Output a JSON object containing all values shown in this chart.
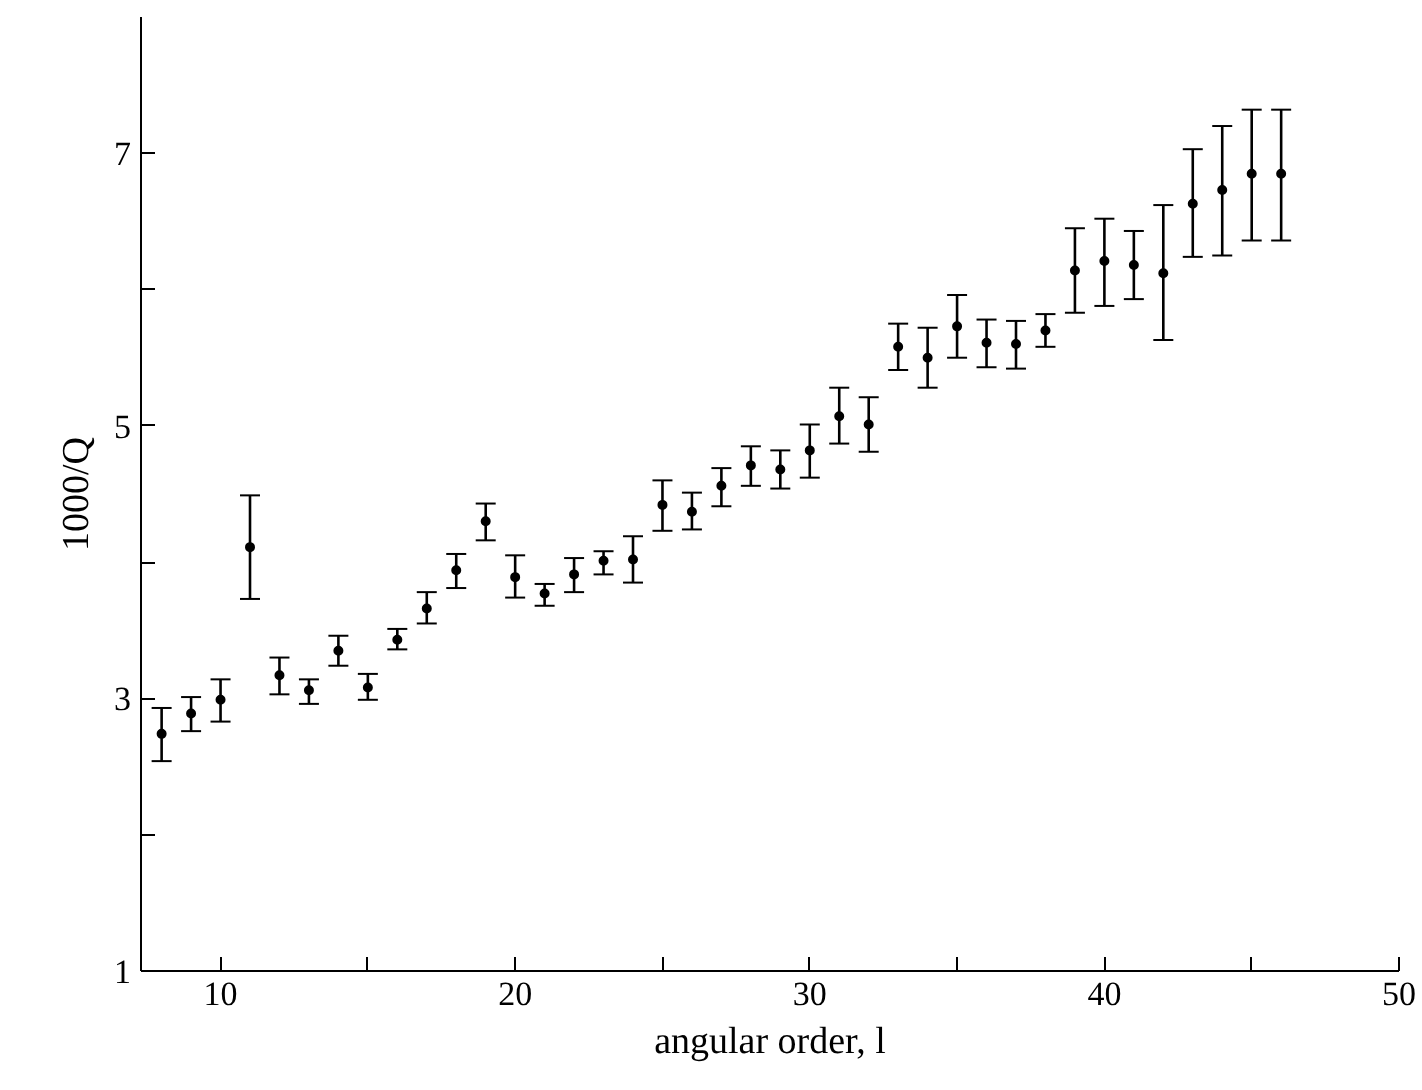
{
  "chart_data": {
    "type": "scatter",
    "xlabel": "angular order, l",
    "ylabel": "1000/Q",
    "x": [
      8,
      9,
      10,
      11,
      12,
      13,
      14,
      15,
      16,
      17,
      18,
      19,
      20,
      21,
      22,
      23,
      24,
      25,
      26,
      27,
      28,
      29,
      30,
      31,
      32,
      33,
      34,
      35,
      36,
      37,
      38,
      39,
      40,
      41,
      42,
      43,
      44,
      45,
      46
    ],
    "values": [
      2.74,
      2.89,
      2.99,
      4.11,
      3.17,
      3.06,
      3.35,
      3.08,
      3.43,
      3.66,
      3.94,
      4.3,
      3.89,
      3.77,
      3.91,
      4.01,
      4.02,
      4.42,
      4.37,
      4.56,
      4.71,
      4.68,
      4.82,
      5.07,
      5.01,
      5.58,
      5.5,
      5.73,
      5.61,
      5.6,
      5.7,
      6.14,
      6.21,
      6.18,
      6.12,
      6.63,
      6.73,
      6.85,
      6.85
    ],
    "errors": [
      [
        2.54,
        2.93
      ],
      [
        2.76,
        3.01
      ],
      [
        2.83,
        3.14
      ],
      [
        3.73,
        4.49
      ],
      [
        3.03,
        3.3
      ],
      [
        2.96,
        3.14
      ],
      [
        3.24,
        3.46
      ],
      [
        2.99,
        3.18
      ],
      [
        3.36,
        3.51
      ],
      [
        3.55,
        3.78
      ],
      [
        3.81,
        4.06
      ],
      [
        4.16,
        4.43
      ],
      [
        3.74,
        4.05
      ],
      [
        3.68,
        3.84
      ],
      [
        3.78,
        4.03
      ],
      [
        3.91,
        4.08
      ],
      [
        3.85,
        4.19
      ],
      [
        4.23,
        4.6
      ],
      [
        4.24,
        4.51
      ],
      [
        4.41,
        4.69
      ],
      [
        4.56,
        4.85
      ],
      [
        4.54,
        4.82
      ],
      [
        4.62,
        5.01
      ],
      [
        4.87,
        5.28
      ],
      [
        4.81,
        5.21
      ],
      [
        5.41,
        5.75
      ],
      [
        5.28,
        5.72
      ],
      [
        5.5,
        5.96
      ],
      [
        5.43,
        5.78
      ],
      [
        5.42,
        5.77
      ],
      [
        5.58,
        5.82
      ],
      [
        5.83,
        6.45
      ],
      [
        5.88,
        6.52
      ],
      [
        5.93,
        6.43
      ],
      [
        5.63,
        6.62
      ],
      [
        6.24,
        7.03
      ],
      [
        6.25,
        7.2
      ],
      [
        6.36,
        7.32
      ],
      [
        6.36,
        7.32
      ]
    ],
    "color": "#000000",
    "marker": "circle",
    "xlim": [
      7.3,
      50
    ],
    "xticks": [
      10,
      {
        "value": 15,
        "label": null
      },
      20,
      {
        "value": 25,
        "label": null
      },
      30,
      {
        "value": 35,
        "label": null
      },
      40,
      {
        "value": 45,
        "label": null
      },
      50
    ],
    "ylim": [
      1,
      8
    ],
    "yticks": [
      1,
      {
        "value": 2,
        "label": null
      },
      3,
      {
        "value": 4,
        "label": null
      },
      5,
      {
        "value": 6,
        "label": null
      },
      7
    ],
    "grid": false
  }
}
